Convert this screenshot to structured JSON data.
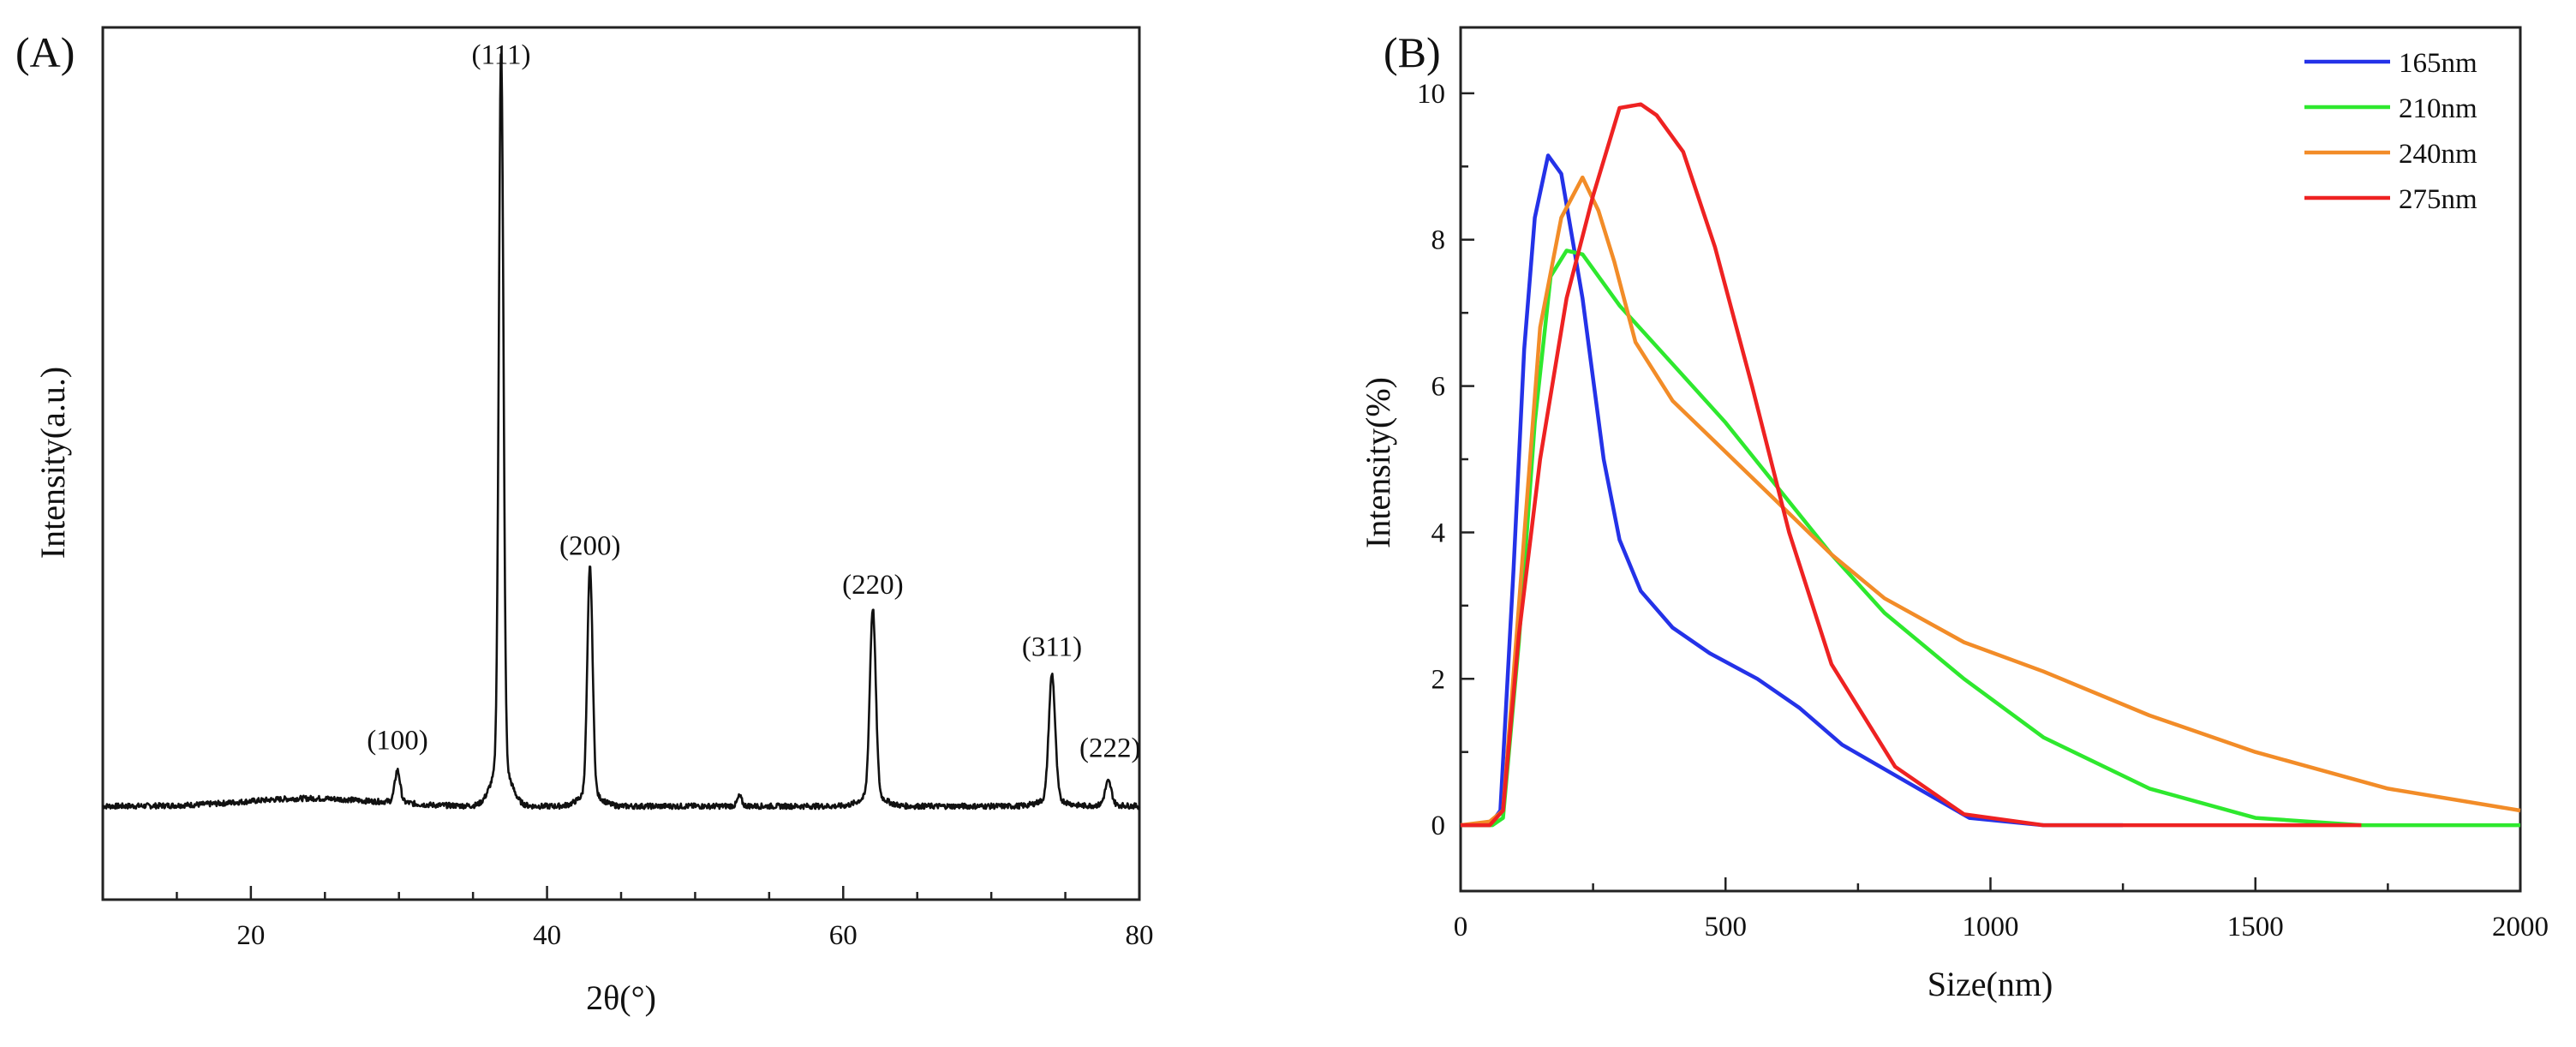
{
  "chart_data": [
    {
      "panel": "(A)",
      "type": "line",
      "xlabel": "2θ(°)",
      "ylabel": "Intensity(a.u.)",
      "xlim": [
        10,
        80
      ],
      "ylim": [
        -120,
        1000
      ],
      "xticks": [
        20,
        40,
        60,
        80
      ],
      "yticks_shown": false,
      "baseline": 0,
      "peaks": [
        {
          "label": "(100)",
          "x": 29.9,
          "y": 40,
          "width": 0.25
        },
        {
          "label": "(111)",
          "x": 36.9,
          "y": 920,
          "width": 0.22
        },
        {
          "label": "(200)",
          "x": 42.9,
          "y": 290,
          "width": 0.25
        },
        {
          "label": "(220)",
          "x": 62.0,
          "y": 240,
          "width": 0.28
        },
        {
          "label": "(311)",
          "x": 74.1,
          "y": 160,
          "width": 0.3
        },
        {
          "label": "(222)",
          "x": 77.9,
          "y": 30,
          "width": 0.3
        }
      ],
      "minor_peaks": [
        {
          "x": 53.0,
          "y": 12,
          "width": 0.2
        }
      ],
      "series": [
        {
          "name": "XRD",
          "color": "#111111"
        }
      ]
    },
    {
      "panel": "(B)",
      "type": "line",
      "xlabel": "Size(nm)",
      "ylabel": "Intensity(%)",
      "xlim": [
        0,
        2000
      ],
      "ylim": [
        -0.9,
        10.9
      ],
      "xticks": [
        0,
        500,
        1000,
        1500,
        2000
      ],
      "yticks": [
        0,
        2,
        4,
        6,
        8,
        10
      ],
      "legend_position": "top-right",
      "series": [
        {
          "name": "165nm",
          "color": "#2432e8",
          "x": [
            0,
            55,
            75,
            100,
            120,
            140,
            165,
            190,
            230,
            270,
            300,
            340,
            400,
            470,
            560,
            640,
            720,
            840,
            960,
            1100,
            1250
          ],
          "y": [
            0,
            0,
            0.2,
            3.5,
            6.5,
            8.3,
            9.15,
            8.9,
            7.2,
            5.0,
            3.9,
            3.2,
            2.7,
            2.35,
            2.0,
            1.6,
            1.1,
            0.6,
            0.1,
            0,
            0
          ]
        },
        {
          "name": "210nm",
          "color": "#2ee82e",
          "x": [
            0,
            60,
            80,
            110,
            140,
            170,
            200,
            230,
            300,
            400,
            500,
            600,
            700,
            800,
            950,
            1100,
            1300,
            1500,
            1700,
            2000
          ],
          "y": [
            0,
            0,
            0.1,
            2.5,
            5.5,
            7.5,
            7.85,
            7.8,
            7.1,
            6.3,
            5.5,
            4.6,
            3.7,
            2.9,
            2.0,
            1.2,
            0.5,
            0.1,
            0,
            0
          ]
        },
        {
          "name": "240nm",
          "color": "#f28c28",
          "x": [
            0,
            55,
            80,
            110,
            150,
            190,
            230,
            260,
            290,
            330,
            400,
            500,
            600,
            700,
            800,
            950,
            1100,
            1300,
            1500,
            1750,
            2000
          ],
          "y": [
            0,
            0.05,
            0.2,
            3.0,
            6.8,
            8.3,
            8.85,
            8.4,
            7.7,
            6.6,
            5.8,
            5.1,
            4.4,
            3.7,
            3.1,
            2.5,
            2.1,
            1.5,
            1.0,
            0.5,
            0.2
          ]
        },
        {
          "name": "275nm",
          "color": "#ee2222",
          "x": [
            0,
            55,
            80,
            110,
            150,
            200,
            250,
            300,
            340,
            370,
            420,
            480,
            550,
            620,
            700,
            820,
            950,
            1100,
            1300,
            1700
          ],
          "y": [
            0,
            0,
            0.2,
            2.6,
            5.0,
            7.2,
            8.6,
            9.8,
            9.85,
            9.7,
            9.2,
            7.9,
            6.0,
            4.0,
            2.2,
            0.8,
            0.15,
            0,
            0,
            0
          ]
        }
      ]
    }
  ]
}
